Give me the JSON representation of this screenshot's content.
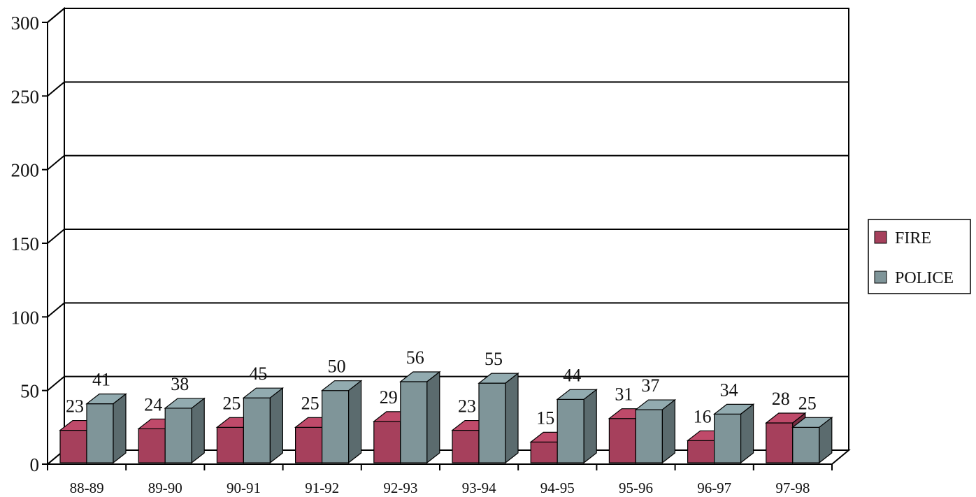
{
  "chart_data": {
    "type": "bar",
    "categories": [
      "88-89",
      "89-90",
      "90-91",
      "91-92",
      "92-93",
      "93-94",
      "94-95",
      "95-96",
      "96-97",
      "97-98"
    ],
    "series": [
      {
        "name": "FIRE",
        "values": [
          23,
          24,
          25,
          25,
          29,
          23,
          15,
          31,
          16,
          28
        ],
        "color": "#a6405c"
      },
      {
        "name": "POLICE",
        "values": [
          41,
          38,
          45,
          50,
          56,
          55,
          44,
          37,
          34,
          25
        ],
        "color": "#7f9599"
      }
    ],
    "yticks": [
      "0",
      "50",
      "100",
      "150",
      "200",
      "250",
      "300"
    ],
    "ylim": [
      0,
      300
    ],
    "grid": true,
    "legend_position": "right",
    "style": "3d-clustered-column"
  }
}
